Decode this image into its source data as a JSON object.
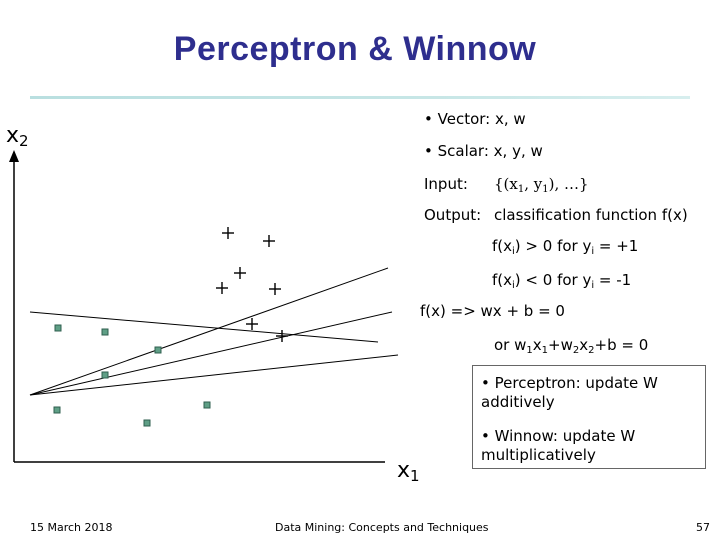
{
  "title": "Perceptron & Winnow",
  "axes": {
    "y_label_base": "x",
    "y_label_sub": "2",
    "x_label_base": "x",
    "x_label_sub": "1"
  },
  "bullets": {
    "vector": "• Vector: x, w",
    "scalar": "• Scalar: x, y, w"
  },
  "input": {
    "label": "Input:",
    "value": "{(x",
    "sub1": "1",
    "mid": ", y",
    "sub2": "1",
    "end": "), …}"
  },
  "output": {
    "label": "Output:",
    "text": "classification function f(x)"
  },
  "rule_pos": {
    "a": "f(x",
    "a_sub": "i",
    "b": ") > 0 for y",
    "b_sub": "i",
    "c": " = +1"
  },
  "rule_neg": {
    "a": "f(x",
    "a_sub": "i",
    "b": ") < 0 for y",
    "b_sub": "i",
    "c": " = -1"
  },
  "decision": {
    "text": "f(x) => wx + b = 0"
  },
  "or_line": {
    "p1": "or w",
    "s1": "1",
    "p2": "x",
    "s2": "1",
    "p3": "+w",
    "s3": "2",
    "p4": "x",
    "s4": "2",
    "p5": "+b = 0"
  },
  "box": {
    "perceptron": "• Perceptron: update W additively",
    "winnow": "• Winnow: update W multiplicatively"
  },
  "footer": {
    "date": "15 March 2018",
    "course": "Data Mining: Concepts and Techniques",
    "page": "57"
  },
  "marker_colors": {
    "positive": "#000000",
    "negative_fill": "#5f9f86",
    "negative_stroke": "#2f5f4f"
  }
}
